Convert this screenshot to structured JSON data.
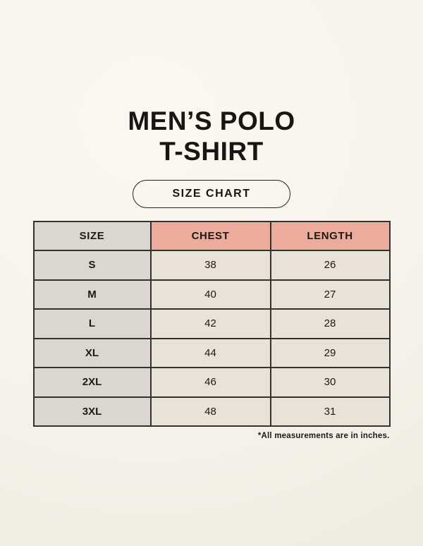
{
  "page": {
    "title_line1": "MEN’S POLO",
    "title_line2": "T-SHIRT",
    "badge_label": "SIZE CHART",
    "footnote": "*All measurements are in inches."
  },
  "table": {
    "headers": [
      "SIZE",
      "CHEST",
      "LENGTH"
    ],
    "rows": [
      {
        "size": "S",
        "chest": "38",
        "length": "26"
      },
      {
        "size": "M",
        "chest": "40",
        "length": "27"
      },
      {
        "size": "L",
        "chest": "42",
        "length": "28"
      },
      {
        "size": "XL",
        "chest": "44",
        "length": "29"
      },
      {
        "size": "2XL",
        "chest": "46",
        "length": "30"
      },
      {
        "size": "3XL",
        "chest": "48",
        "length": "31"
      }
    ],
    "units": "inches"
  },
  "colors": {
    "background": "#f8f4ec",
    "header_accent_pink": "#ecab9b",
    "size_column_gray": "#dcd6d0",
    "data_cell_cream": "#e9e2d6",
    "table_border": "#343231",
    "text": "#171613"
  }
}
